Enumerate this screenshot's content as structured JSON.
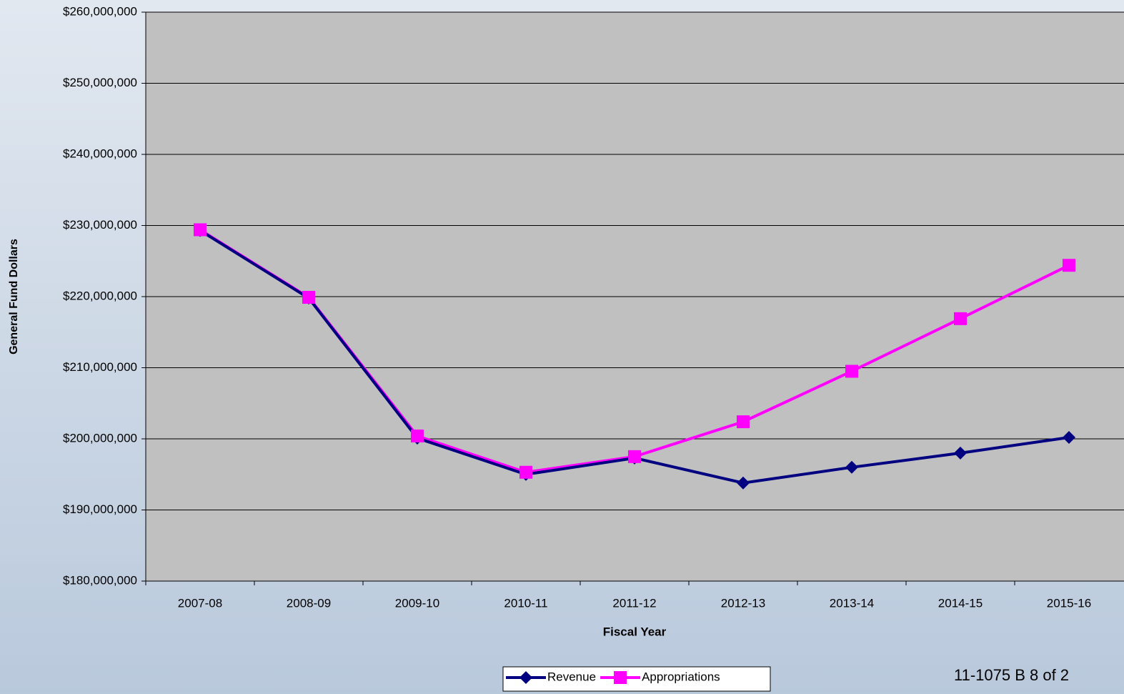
{
  "chart_data": {
    "type": "line",
    "y_label": "General Fund Dollars",
    "x_label": "Fiscal Year",
    "categories": [
      "2007-08",
      "2008-09",
      "2009-10",
      "2010-11",
      "2011-12",
      "2012-13",
      "2013-14",
      "2014-15",
      "2015-16"
    ],
    "series": [
      {
        "name": "Revenue",
        "color": "#000080",
        "marker": "diamond",
        "values": [
          229300000,
          219800000,
          200100000,
          195000000,
          197300000,
          193800000,
          196000000,
          198000000,
          200200000
        ]
      },
      {
        "name": "Appropriations",
        "color": "#ff00ff",
        "marker": "square",
        "values": [
          229400000,
          219900000,
          200400000,
          195300000,
          197500000,
          202400000,
          209500000,
          216900000,
          224400000
        ]
      }
    ],
    "ylim": [
      180000000,
      260000000
    ],
    "yticks": [
      {
        "value": 180000000,
        "label": "$180,000,000"
      },
      {
        "value": 190000000,
        "label": "$190,000,000"
      },
      {
        "value": 200000000,
        "label": "$200,000,000"
      },
      {
        "value": 210000000,
        "label": "$210,000,000"
      },
      {
        "value": 220000000,
        "label": "$220,000,000"
      },
      {
        "value": 230000000,
        "label": "$230,000,000"
      },
      {
        "value": 240000000,
        "label": "$240,000,000"
      },
      {
        "value": 250000000,
        "label": "$250,000,000"
      },
      {
        "value": 260000000,
        "label": "$260,000,000"
      }
    ],
    "grid": true,
    "legend": "bottom",
    "annotation": "11-1075 B 8 of 2"
  }
}
